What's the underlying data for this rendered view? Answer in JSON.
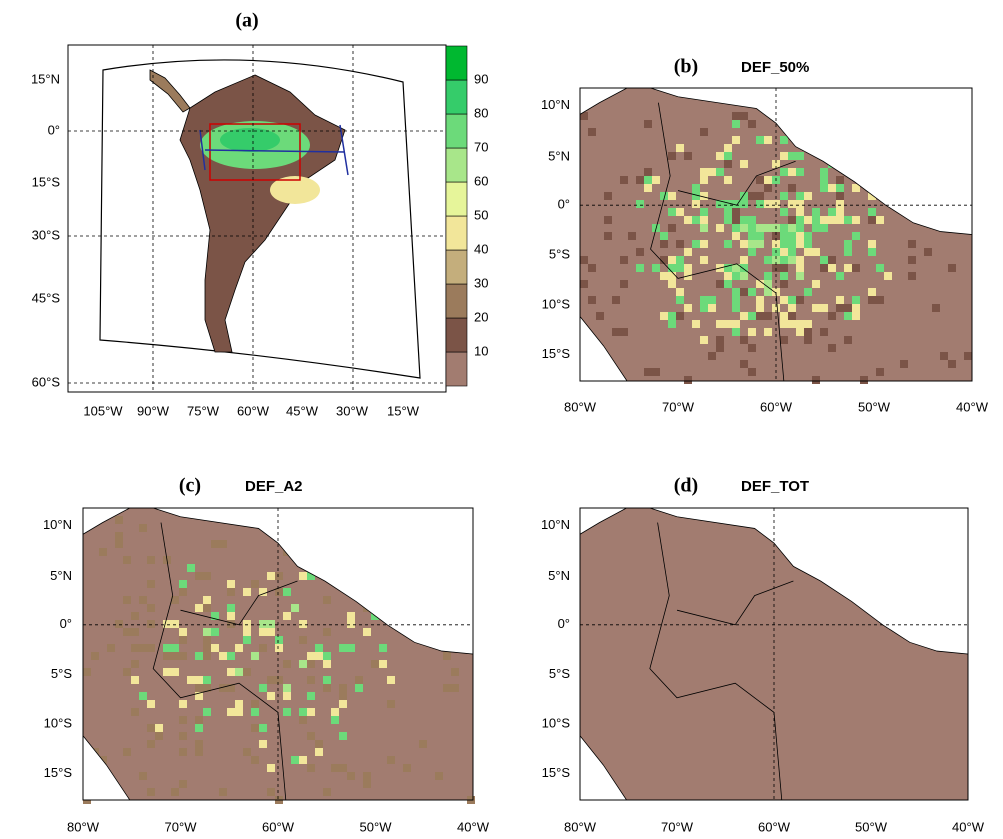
{
  "panels": [
    {
      "label": "(a)",
      "lat_ticks": [
        "15°N",
        "0°",
        "15°S",
        "30°S",
        "45°S",
        "60°S"
      ],
      "lon_ticks": [
        "105°W",
        "90°W",
        "75°W",
        "60°W",
        "45°W",
        "30°W",
        "15°W"
      ]
    },
    {
      "label": "(b)",
      "title": "DEF_50%",
      "lat_ticks": [
        "10°N",
        "5°N",
        "0°",
        "5°S",
        "10°S",
        "15°S"
      ],
      "lon_ticks": [
        "80°W",
        "70°W",
        "60°W",
        "50°W",
        "40°W"
      ]
    },
    {
      "label": "(c)",
      "title": "DEF_A2",
      "lat_ticks": [
        "10°N",
        "5°N",
        "0°",
        "5°S",
        "10°S",
        "15°S"
      ],
      "lon_ticks": [
        "80°W",
        "70°W",
        "60°W",
        "50°W",
        "40°W"
      ]
    },
    {
      "label": "(d)",
      "title": "DEF_TOT",
      "lat_ticks": [
        "10°N",
        "5°N",
        "0°",
        "5°S",
        "10°S",
        "15°S"
      ],
      "lon_ticks": [
        "80°W",
        "70°W",
        "60°W",
        "50°W",
        "40°W"
      ]
    }
  ],
  "colorbar": {
    "ticks": [
      10,
      20,
      30,
      40,
      50,
      60,
      70,
      80,
      90
    ],
    "colors": [
      "#a27c70",
      "#7b5447",
      "#9b7b5c",
      "#c4ae7c",
      "#f2e69a",
      "#e6f59a",
      "#a8e68a",
      "#6cda7a",
      "#35cc6a",
      "#00b830"
    ]
  }
}
